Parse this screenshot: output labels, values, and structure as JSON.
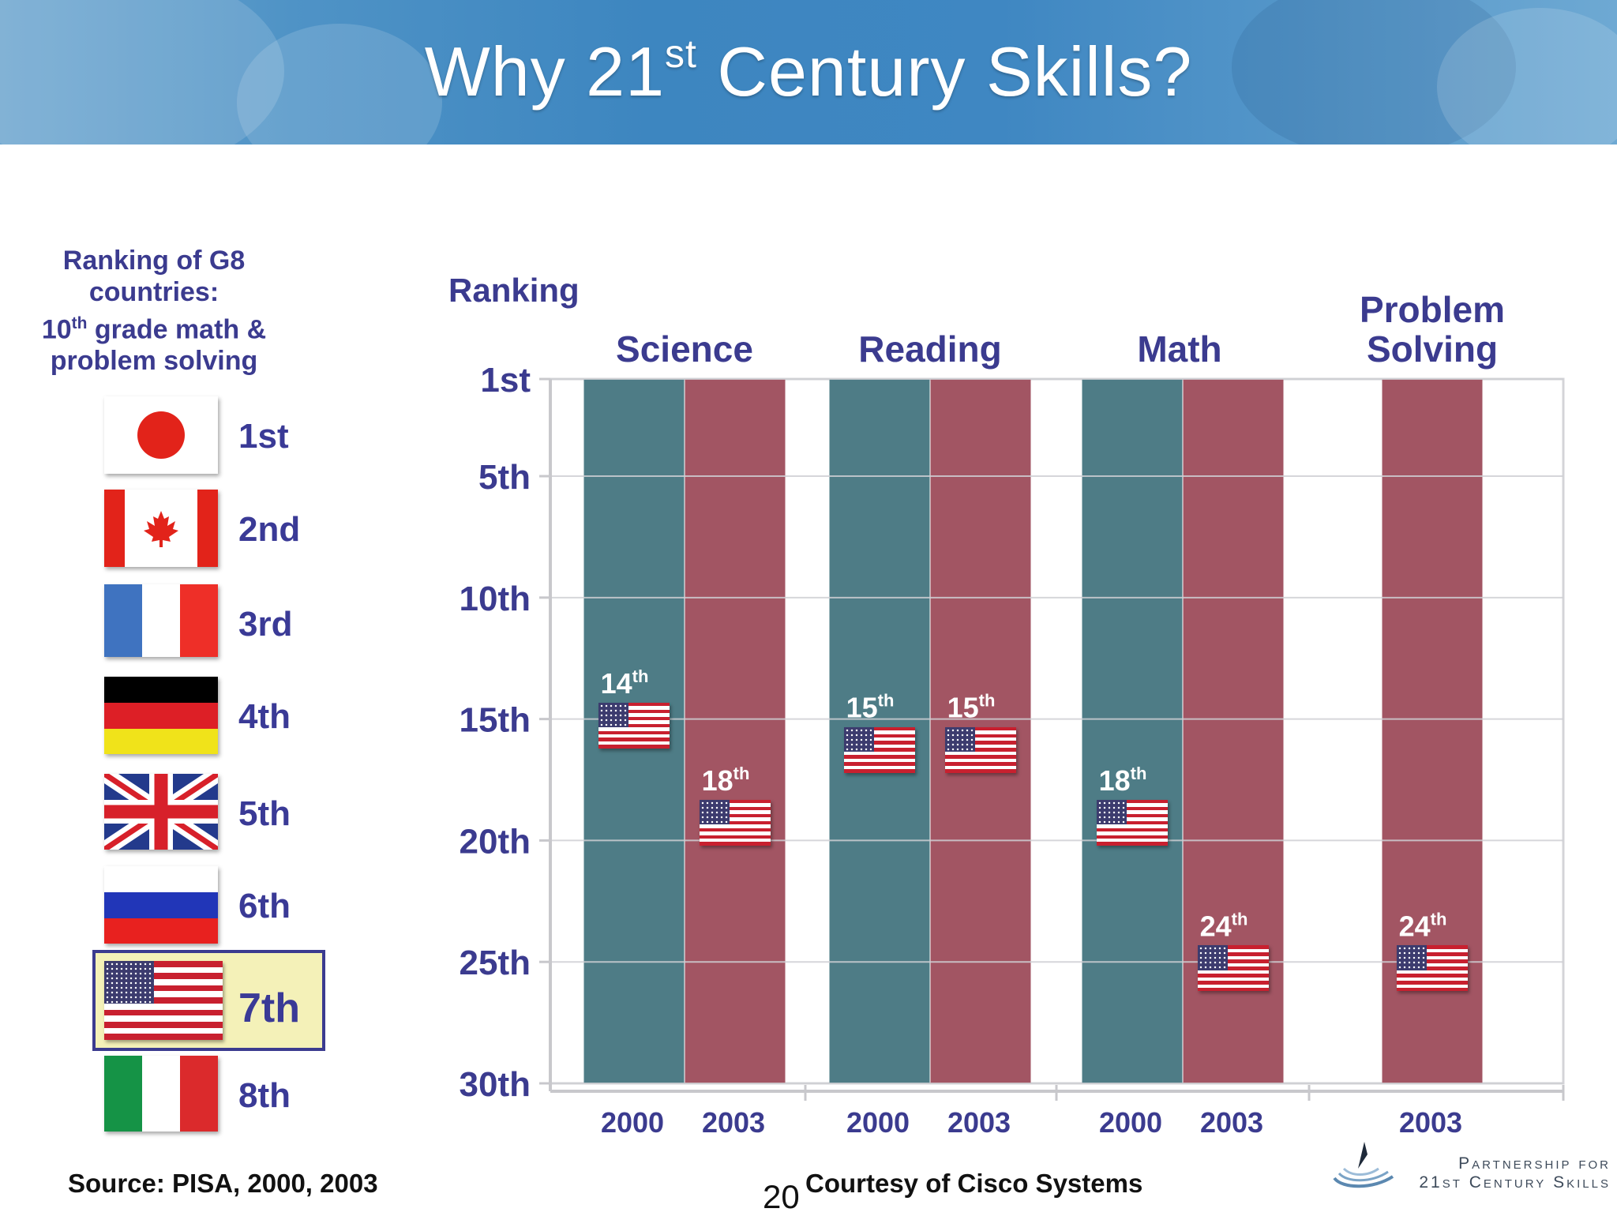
{
  "slide": {
    "title_main": "Why 21",
    "title_sup": "st",
    "title_rest": " Century Skills?",
    "page_number": "20",
    "source": "Source: PISA, 2000, 2003",
    "courtesy": "Courtesy of Cisco Systems",
    "logo_line1": "Partnership for",
    "logo_line2": "21st Century Skills"
  },
  "legend": {
    "title_line1": "Ranking of G8",
    "title_line2": "countries:",
    "title_line3_num": "10",
    "title_line3_sup": "th",
    "title_line3_rest": " grade math &",
    "title_line4": "problem solving",
    "ranks": [
      {
        "flag": "japan-flag",
        "label": "1st"
      },
      {
        "flag": "canada-flag",
        "label": "2nd"
      },
      {
        "flag": "france-flag",
        "label": "3rd"
      },
      {
        "flag": "germany-flag",
        "label": "4th"
      },
      {
        "flag": "uk-flag",
        "label": "5th"
      },
      {
        "flag": "russia-flag",
        "label": "6th"
      },
      {
        "flag": "us-flag",
        "label": "7th",
        "highlighted": true
      },
      {
        "flag": "italy-flag",
        "label": "8th"
      }
    ]
  },
  "colors": {
    "title_blue": "#3b3b8f",
    "bar_2000": "#4e7c86",
    "bar_2003": "#a25563",
    "highlight": "#f4f1b8"
  },
  "chart_data": {
    "type": "bar",
    "ylabel": "Ranking",
    "y_ticks": [
      {
        "value": 1,
        "label": "1st"
      },
      {
        "value": 5,
        "label": "5th"
      },
      {
        "value": 10,
        "label": "10th"
      },
      {
        "value": 15,
        "label": "15th"
      },
      {
        "value": 20,
        "label": "20th"
      },
      {
        "value": 25,
        "label": "25th"
      },
      {
        "value": 30,
        "label": "30th"
      }
    ],
    "ylim": [
      1,
      30
    ],
    "y_inverted": true,
    "grid": true,
    "groups": [
      {
        "name": "Science",
        "bars": [
          {
            "year": "2000",
            "value": 14,
            "label": "14",
            "sup": "th"
          },
          {
            "year": "2003",
            "value": 18,
            "label": "18",
            "sup": "th"
          }
        ]
      },
      {
        "name": "Reading",
        "bars": [
          {
            "year": "2000",
            "value": 15,
            "label": "15",
            "sup": "th"
          },
          {
            "year": "2003",
            "value": 15,
            "label": "15",
            "sup": "th"
          }
        ]
      },
      {
        "name": "Math",
        "bars": [
          {
            "year": "2000",
            "value": 18,
            "label": "18",
            "sup": "th"
          },
          {
            "year": "2003",
            "value": 24,
            "label": "24",
            "sup": "th"
          }
        ]
      },
      {
        "name": "Problem Solving",
        "bars": [
          {
            "year": "2003",
            "value": 24,
            "label": "24",
            "sup": "th"
          }
        ]
      }
    ]
  }
}
